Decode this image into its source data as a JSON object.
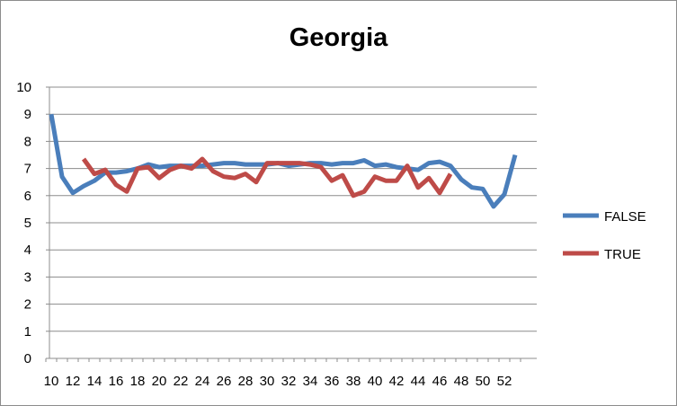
{
  "chart_data": {
    "type": "line",
    "title": "Georgia",
    "xlabel": "",
    "ylabel": "",
    "ylim": [
      0,
      10
    ],
    "yticks": [
      0,
      1,
      2,
      3,
      4,
      5,
      6,
      7,
      8,
      9,
      10
    ],
    "xlim": [
      10,
      53
    ],
    "xticks": [
      10,
      12,
      14,
      16,
      18,
      20,
      22,
      24,
      26,
      28,
      30,
      32,
      34,
      36,
      38,
      40,
      42,
      44,
      46,
      48,
      50,
      52
    ],
    "grid": "horizontal",
    "legend": "right",
    "series": [
      {
        "name": "FALSE",
        "color": "#4a7ebb",
        "x": [
          10,
          11,
          12,
          13,
          14,
          15,
          16,
          17,
          18,
          19,
          20,
          21,
          22,
          23,
          24,
          25,
          26,
          27,
          28,
          29,
          30,
          31,
          32,
          33,
          34,
          35,
          36,
          37,
          38,
          39,
          40,
          41,
          42,
          43,
          44,
          45,
          46,
          47,
          48,
          49,
          50,
          51,
          52,
          53
        ],
        "y": [
          9.0,
          6.7,
          6.1,
          6.35,
          6.55,
          6.85,
          6.85,
          6.9,
          7.0,
          7.15,
          7.05,
          7.1,
          7.1,
          7.1,
          7.1,
          7.15,
          7.2,
          7.2,
          7.15,
          7.15,
          7.15,
          7.2,
          7.1,
          7.15,
          7.2,
          7.2,
          7.15,
          7.2,
          7.2,
          7.3,
          7.1,
          7.15,
          7.05,
          7.0,
          6.95,
          7.2,
          7.25,
          7.1,
          6.6,
          6.3,
          6.25,
          5.6,
          6.05,
          7.5
        ]
      },
      {
        "name": "TRUE",
        "color": "#be4b48",
        "x": [
          13,
          14,
          15,
          16,
          17,
          18,
          19,
          20,
          21,
          22,
          23,
          24,
          25,
          26,
          27,
          28,
          29,
          30,
          31,
          32,
          33,
          34,
          35,
          36,
          37,
          38,
          39,
          40,
          41,
          42,
          43,
          44,
          45,
          46,
          47
        ],
        "y": [
          7.35,
          6.8,
          6.95,
          6.4,
          6.15,
          7.0,
          7.05,
          6.65,
          6.95,
          7.1,
          7.0,
          7.35,
          6.9,
          6.7,
          6.65,
          6.8,
          6.5,
          7.2,
          7.2,
          7.2,
          7.2,
          7.15,
          7.05,
          6.55,
          6.75,
          6.0,
          6.15,
          6.7,
          6.55,
          6.55,
          7.1,
          6.3,
          6.65,
          6.1,
          6.8
        ]
      }
    ]
  }
}
